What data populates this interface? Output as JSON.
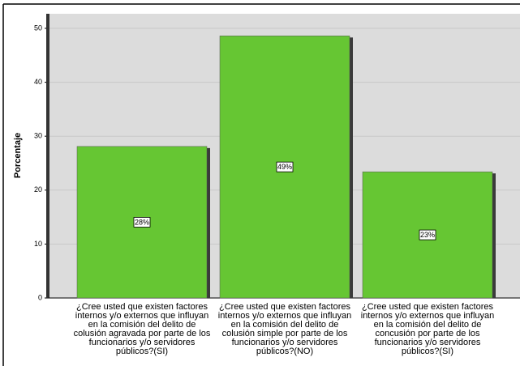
{
  "chart_data": {
    "type": "bar",
    "y_label": "Porcentaje",
    "categories": [
      "¿Cree usted que existen factores internos y/o externos que influyan en la comisión del delito de colusión agravada por parte de los funcionarios y/o servidores públicos?(SI)",
      "¿Cree usted que existen factores internos y/o externos que influyan en la comisión del delito de colusión simple por parte de los funcionarios y/o servidores públicos?(NO)",
      "¿Cree usted que existen factores internos y/o externos que influyan en la comisión del delito de concusión por parte de los funcionarios y/o servidores públicos?(SI)"
    ],
    "values": [
      28.1,
      48.6,
      23.4
    ],
    "value_labels": [
      "28%",
      "49%",
      "23%"
    ],
    "color": "#66c633",
    "ylim": [
      0,
      52.7
    ],
    "yticks": [
      0,
      10,
      20,
      30,
      40,
      50
    ],
    "grid": true
  }
}
